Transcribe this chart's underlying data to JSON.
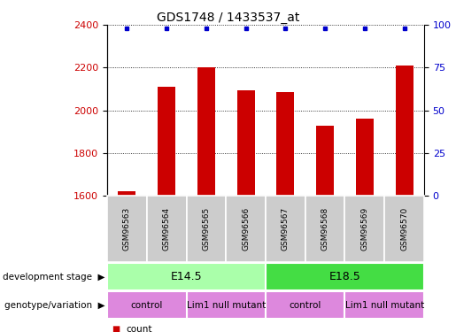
{
  "title": "GDS1748 / 1433537_at",
  "samples": [
    "GSM96563",
    "GSM96564",
    "GSM96565",
    "GSM96566",
    "GSM96567",
    "GSM96568",
    "GSM96569",
    "GSM96570"
  ],
  "counts": [
    1620,
    2110,
    2200,
    2095,
    2085,
    1930,
    1960,
    2210
  ],
  "percentiles": [
    98,
    98,
    98,
    98,
    98,
    98,
    98,
    98
  ],
  "ylim_left": [
    1600,
    2400
  ],
  "ylim_right": [
    0,
    100
  ],
  "yticks_left": [
    1600,
    1800,
    2000,
    2200,
    2400
  ],
  "yticks_right": [
    0,
    25,
    50,
    75,
    100
  ],
  "bar_color": "#cc0000",
  "dot_color": "#0000cc",
  "bar_width": 0.45,
  "development_stage_labels": [
    "E14.5",
    "E18.5"
  ],
  "development_stage_ranges": [
    [
      0,
      4
    ],
    [
      4,
      8
    ]
  ],
  "development_stage_colors": [
    "#aaffaa",
    "#44dd44"
  ],
  "genotype_labels": [
    "control",
    "Lim1 null mutant",
    "control",
    "Lim1 null mutant"
  ],
  "genotype_ranges": [
    [
      0,
      2
    ],
    [
      2,
      4
    ],
    [
      4,
      6
    ],
    [
      6,
      8
    ]
  ],
  "genotype_color": "#dd88dd",
  "sample_bg_color": "#cccccc",
  "legend_count_color": "#cc0000",
  "legend_dot_color": "#0000cc"
}
